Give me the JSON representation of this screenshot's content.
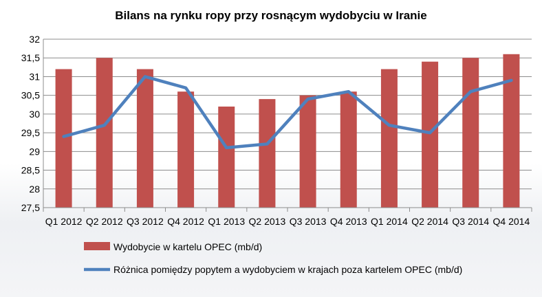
{
  "chart_data": {
    "type": "bar+line",
    "title": "Bilans na rynku ropy przy rosnącym wydobyciu w Iranie",
    "categories": [
      "Q1 2012",
      "Q2 2012",
      "Q3 2012",
      "Q4 2012",
      "Q1 2013",
      "Q2 2013",
      "Q3 2013",
      "Q4 2013",
      "Q1 2014",
      "Q2 2014",
      "Q3 2014",
      "Q4 2014"
    ],
    "ylim": [
      27.5,
      32
    ],
    "yticks": [
      "27,5",
      "28",
      "28,5",
      "29",
      "29,5",
      "30",
      "30,5",
      "31",
      "31,5",
      "32"
    ],
    "ytick_values": [
      27.5,
      28,
      28.5,
      29,
      29.5,
      30,
      30.5,
      31,
      31.5,
      32
    ],
    "grid": true,
    "legend_position": "bottom",
    "series": [
      {
        "name": "Wydobycie w kartelu OPEC (mb/d)",
        "type": "bar",
        "color": "#c0504d",
        "values": [
          31.2,
          31.5,
          31.2,
          30.6,
          30.2,
          30.4,
          30.5,
          30.6,
          31.2,
          31.4,
          31.5,
          31.6
        ]
      },
      {
        "name": "Różnica pomiędzy popytem a wydobyciem w krajach poza kartelem OPEC (mb/d)",
        "type": "line",
        "color": "#4f81bd",
        "values": [
          29.4,
          29.7,
          31.0,
          30.7,
          29.1,
          29.2,
          30.4,
          30.6,
          29.7,
          29.5,
          30.6,
          30.9
        ]
      }
    ]
  }
}
